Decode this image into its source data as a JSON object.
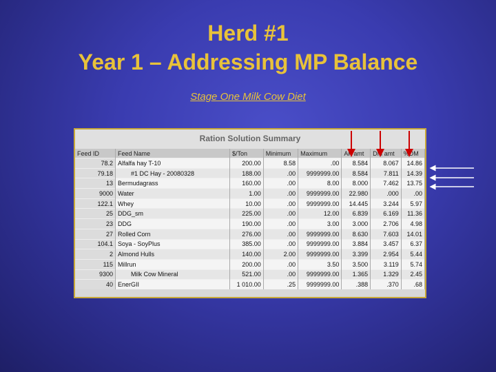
{
  "title_line1": "Herd #1",
  "title_line2": "Year 1 – Addressing MP Balance",
  "subtitle": "Stage One Milk Cow Diet",
  "panel_title": "Ration Solution Summary",
  "columns": [
    "Feed ID",
    "Feed Name",
    "$/Ton",
    "Minimum",
    "Maximum",
    "AF amt",
    "DM amt",
    "%DM"
  ],
  "rows": [
    {
      "id": "78.2",
      "name": "Alfalfa hay T-10",
      "price": "200.00",
      "min": "8.58",
      "max": ".00",
      "af": "8.584",
      "dm": "8.067",
      "pdm": "14.86"
    },
    {
      "id": "79.18",
      "name": "#1 DC Hay - 20080328",
      "price": "188.00",
      "min": ".00",
      "max": "9999999.00",
      "af": "8.584",
      "dm": "7.811",
      "pdm": "14.39"
    },
    {
      "id": "13",
      "name": "Bermudagrass",
      "price": "160.00",
      "min": ".00",
      "max": "8.00",
      "af": "8.000",
      "dm": "7.462",
      "pdm": "13.75"
    },
    {
      "id": "9000",
      "name": "Water",
      "price": "1.00",
      "min": ".00",
      "max": "9999999.00",
      "af": "22.980",
      "dm": ".000",
      "pdm": ".00"
    },
    {
      "id": "122.1",
      "name": "Whey",
      "price": "10.00",
      "min": ".00",
      "max": "9999999.00",
      "af": "14.445",
      "dm": "3.244",
      "pdm": "5.97"
    },
    {
      "id": "25",
      "name": "DDG_sm",
      "price": "225.00",
      "min": ".00",
      "max": "12.00",
      "af": "6.839",
      "dm": "6.169",
      "pdm": "11.36"
    },
    {
      "id": "23",
      "name": "DDG",
      "price": "190.00",
      "min": ".00",
      "max": "3.00",
      "af": "3.000",
      "dm": "2.706",
      "pdm": "4.98"
    },
    {
      "id": "27",
      "name": "Rolled Corn",
      "price": "276.00",
      "min": ".00",
      "max": "9999999.00",
      "af": "8.630",
      "dm": "7.603",
      "pdm": "14.01"
    },
    {
      "id": "104.1",
      "name": "Soya - SoyPlus",
      "price": "385.00",
      "min": ".00",
      "max": "9999999.00",
      "af": "3.884",
      "dm": "3.457",
      "pdm": "6.37"
    },
    {
      "id": "2",
      "name": "Almond Hulls",
      "price": "140.00",
      "min": "2.00",
      "max": "9999999.00",
      "af": "3.399",
      "dm": "2.954",
      "pdm": "5.44"
    },
    {
      "id": "115",
      "name": "Millrun",
      "price": "200.00",
      "min": ".00",
      "max": "3.50",
      "af": "3.500",
      "dm": "3.119",
      "pdm": "5.74"
    },
    {
      "id": "9300",
      "name": "Milk Cow Mineral",
      "price": "521.00",
      "min": ".00",
      "max": "9999999.00",
      "af": "1.365",
      "dm": "1.329",
      "pdm": "2.45"
    },
    {
      "id": "40",
      "name": "EnerGII",
      "price": "1 010.00",
      "min": ".25",
      "max": "9999999.00",
      "af": ".388",
      "dm": ".370",
      "pdm": ".68"
    }
  ],
  "colors": {
    "title": "#e8c23a",
    "arrow": "#cc0000",
    "side_arrow": "#ffffff"
  }
}
